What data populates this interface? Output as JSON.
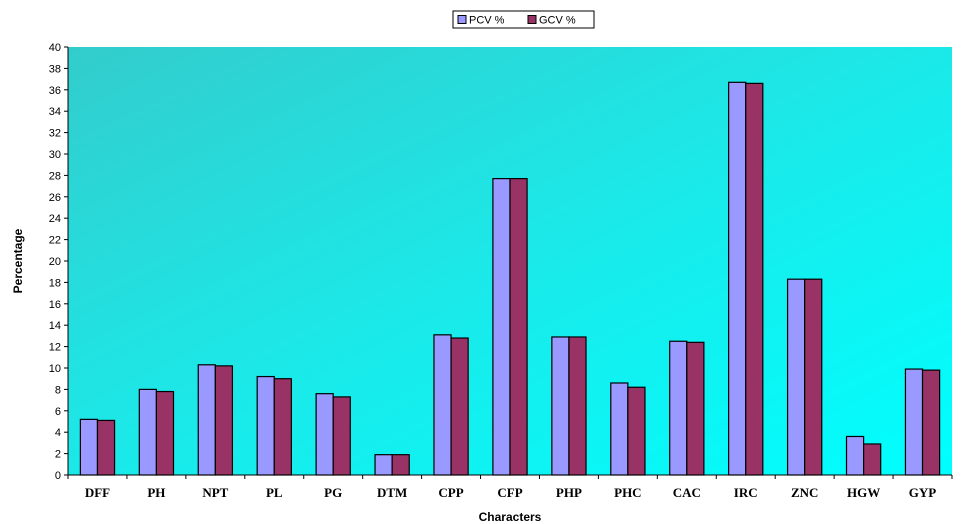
{
  "chart_data": {
    "type": "bar",
    "title": "",
    "xlabel": "Characters",
    "ylabel": "Percentage",
    "ylim": [
      0,
      40
    ],
    "ytick_step": 2,
    "grid": false,
    "legend_position": "top-center",
    "background": "gradient-teal-cyan",
    "categories": [
      "DFF",
      "PH",
      "NPT",
      "PL",
      "PG",
      "DTM",
      "CPP",
      "CFP",
      "PHP",
      "PHC",
      "CAC",
      "IRC",
      "ZNC",
      "HGW",
      "GYP"
    ],
    "series": [
      {
        "name": "PCV %",
        "color": "#9999ff",
        "values": [
          5.2,
          8.0,
          10.3,
          9.2,
          7.6,
          1.9,
          13.1,
          27.7,
          12.9,
          8.6,
          12.5,
          36.7,
          18.3,
          3.6,
          9.9
        ]
      },
      {
        "name": "GCV %",
        "color": "#993366",
        "values": [
          5.1,
          7.8,
          10.2,
          9.0,
          7.3,
          1.9,
          12.8,
          27.7,
          12.9,
          8.2,
          12.4,
          36.6,
          18.3,
          2.9,
          9.8
        ]
      }
    ]
  }
}
